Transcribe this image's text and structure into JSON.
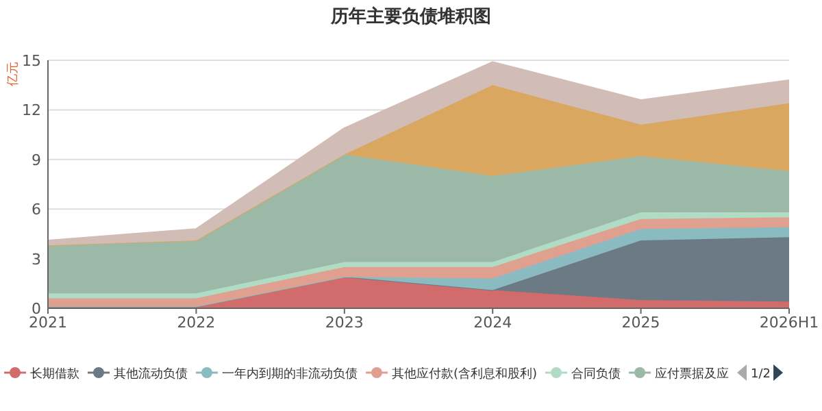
{
  "chart_data": {
    "type": "area",
    "title": "历年主要负债堆积图",
    "ylabel": "亿元",
    "stacked": true,
    "categories": [
      "2021",
      "2022",
      "2023",
      "2024",
      "2025",
      "2026H1"
    ],
    "ylim": [
      0,
      15
    ],
    "yticks": [
      0,
      3,
      6,
      9,
      12,
      15
    ],
    "grid": "y",
    "legend": "bottom",
    "marker": "none",
    "annotations": [
      "1/2"
    ],
    "series": [
      {
        "name": "长期借款",
        "color": "#d26b6b",
        "values": [
          0.1,
          0.1,
          1.9,
          1.1,
          0.5,
          0.4
        ]
      },
      {
        "name": "其他流动负债",
        "color": "#6b7a84",
        "values": [
          0,
          0,
          0,
          0,
          3.6,
          3.9
        ]
      },
      {
        "name": "一年内到期的非流动负债",
        "color": "#8abbc0",
        "values": [
          0,
          0,
          0,
          0.7,
          0.7,
          0.6
        ]
      },
      {
        "name": "其他应付款(含利息和股利)",
        "color": "#e0a08f",
        "values": [
          0.5,
          0.5,
          0.6,
          0.7,
          0.6,
          0.6
        ]
      },
      {
        "name": "合同负债",
        "color": "#b0dcc6",
        "values": [
          0.3,
          0.3,
          0.3,
          0.3,
          0.4,
          0.3
        ]
      },
      {
        "name": "应付票据及应",
        "color": "#9bb9a6",
        "values": [
          2.9,
          3.2,
          6.5,
          5.2,
          3.4,
          2.5
        ]
      },
      {
        "color": "#d9a760",
        "values": [
          0,
          0,
          0,
          5.5,
          1.9,
          4.1
        ]
      },
      {
        "color": "#d2bcb6",
        "values": [
          0.3,
          0.7,
          1.6,
          1.4,
          1.5,
          1.4
        ]
      }
    ]
  }
}
